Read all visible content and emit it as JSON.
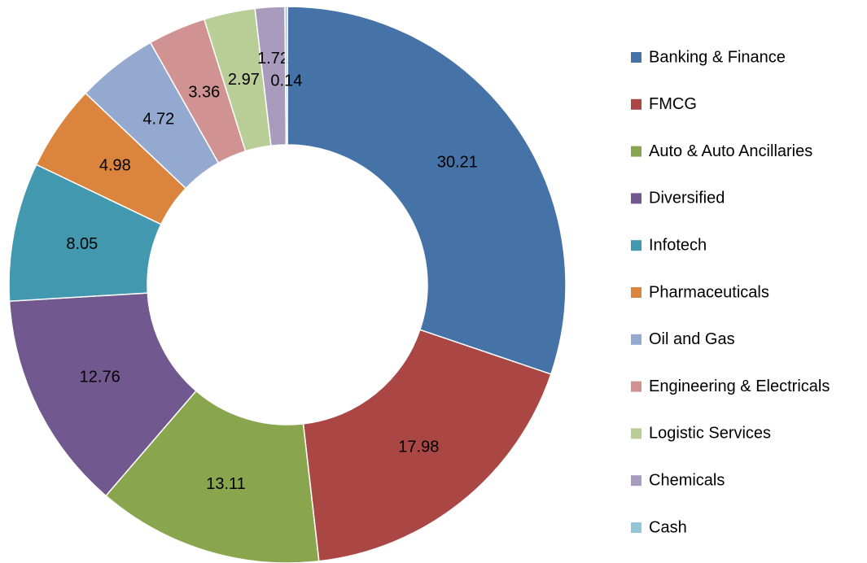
{
  "chart_data": {
    "type": "donut",
    "categories": [
      "Banking & Finance",
      "FMCG",
      "Auto & Auto Ancillaries",
      "Diversified",
      "Infotech",
      "Pharmaceuticals",
      "Oil and Gas",
      "Engineering & Electricals",
      "Logistic Services",
      "Chemicals",
      "Cash"
    ],
    "values": [
      30.21,
      17.98,
      13.11,
      12.76,
      8.05,
      4.98,
      4.72,
      3.36,
      2.97,
      1.72,
      0.14
    ],
    "colors": [
      "#4572a7",
      "#aa4643",
      "#89a54e",
      "#71588f",
      "#4198af",
      "#db843d",
      "#93a9cf",
      "#d19392",
      "#b9cd96",
      "#a99bbd",
      "#92c5d6"
    ],
    "legend": "right"
  }
}
